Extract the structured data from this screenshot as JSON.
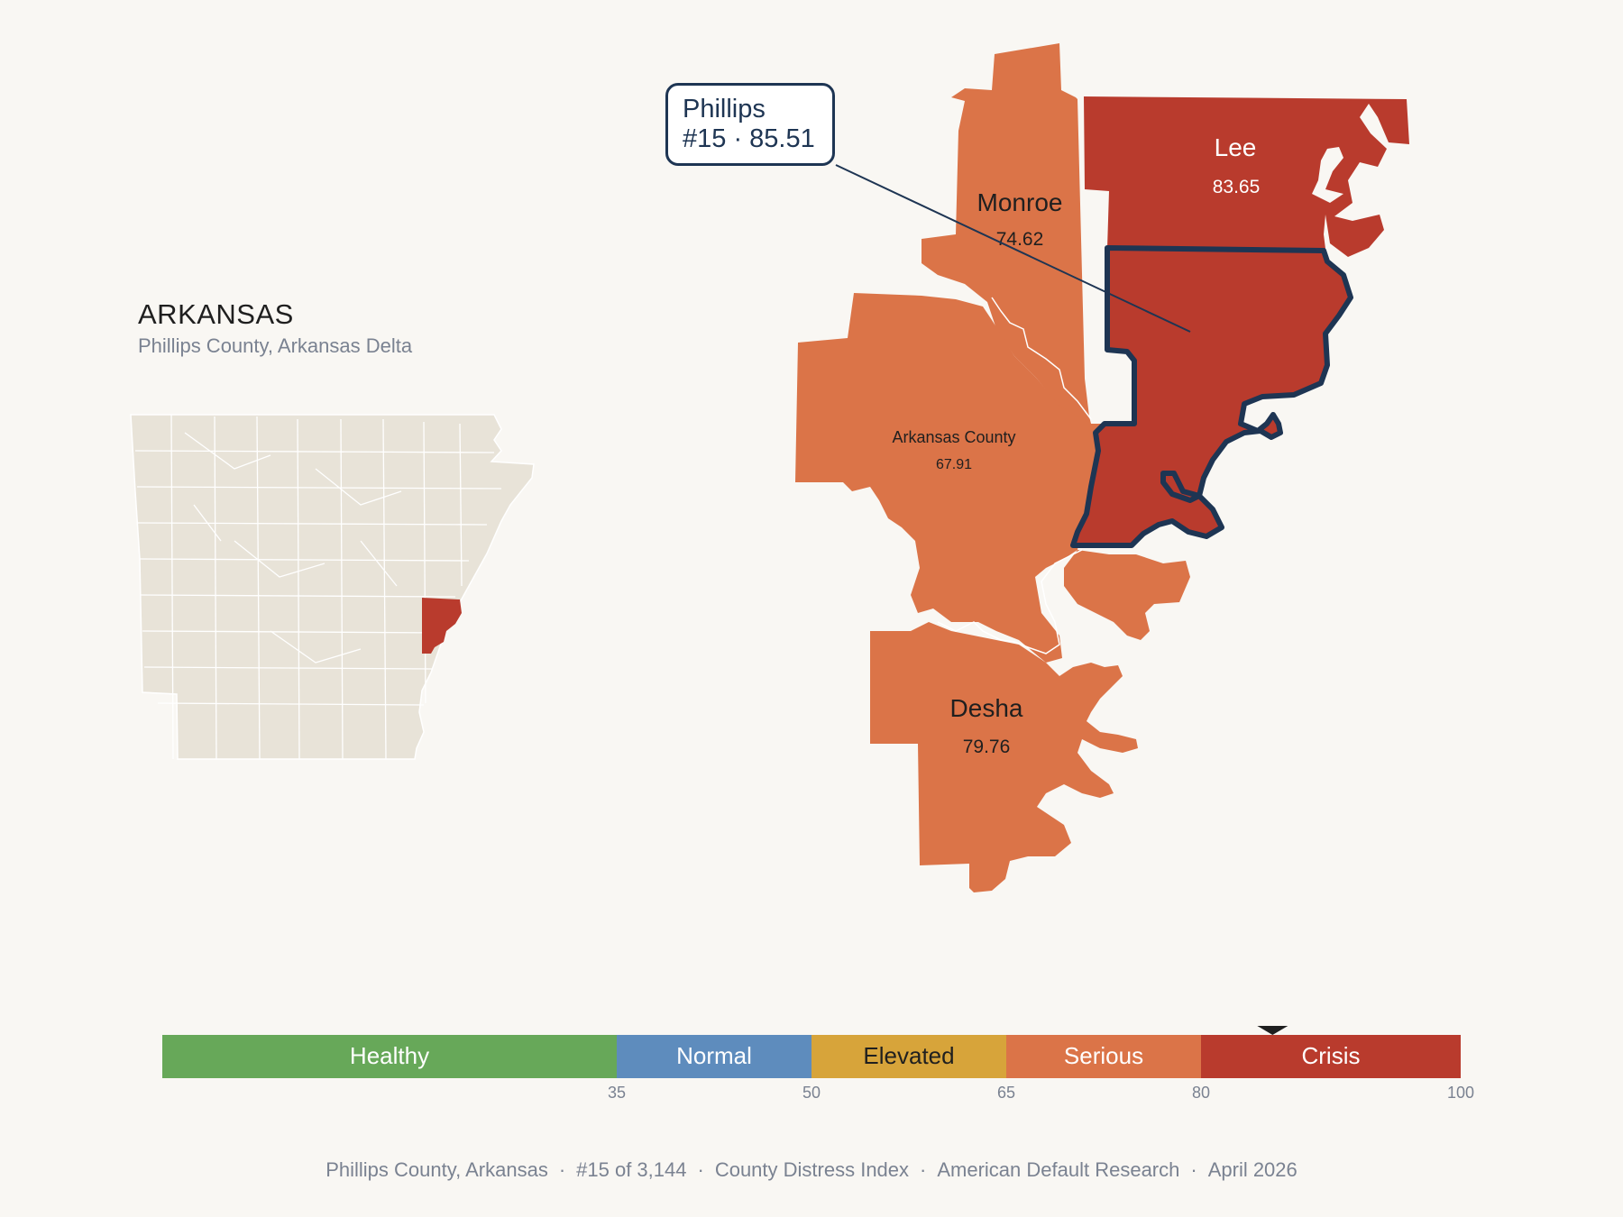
{
  "state": {
    "title": "ARKANSAS",
    "subtitle": "Phillips County, Arkansas Delta"
  },
  "callout": {
    "name": "Phillips",
    "rank_score": "#15 · 85.51"
  },
  "counties": [
    {
      "name": "Lee",
      "score": "83.65",
      "category": "Crisis"
    },
    {
      "name": "Monroe",
      "score": "74.62",
      "category": "Serious"
    },
    {
      "name": "Arkansas County",
      "score": "67.91",
      "category": "Serious"
    },
    {
      "name": "Desha",
      "score": "79.76",
      "category": "Serious"
    },
    {
      "name": "Phillips",
      "score": "85.51",
      "category": "Crisis"
    }
  ],
  "legend": {
    "bands": [
      {
        "label": "Healthy",
        "from": 0,
        "to": 35,
        "color": "#67a859"
      },
      {
        "label": "Normal",
        "from": 35,
        "to": 50,
        "color": "#5e8cbd"
      },
      {
        "label": "Elevated",
        "from": 50,
        "to": 65,
        "color": "#d7a43a"
      },
      {
        "label": "Serious",
        "from": 65,
        "to": 80,
        "color": "#db7448"
      },
      {
        "label": "Crisis",
        "from": 80,
        "to": 100,
        "color": "#b93b2d"
      }
    ],
    "ticks": [
      "35",
      "50",
      "65",
      "80",
      "100"
    ],
    "marker_value": 85.51
  },
  "colors": {
    "crisis": "#b93b2d",
    "serious": "#db7448",
    "outline": "#1e3553",
    "locator_fill": "#e8e3d8"
  },
  "footer": {
    "county": "Phillips County, Arkansas",
    "rank": "#15 of 3,144",
    "index": "County Distress Index",
    "org": "American Default Research",
    "date": "April 2026"
  }
}
